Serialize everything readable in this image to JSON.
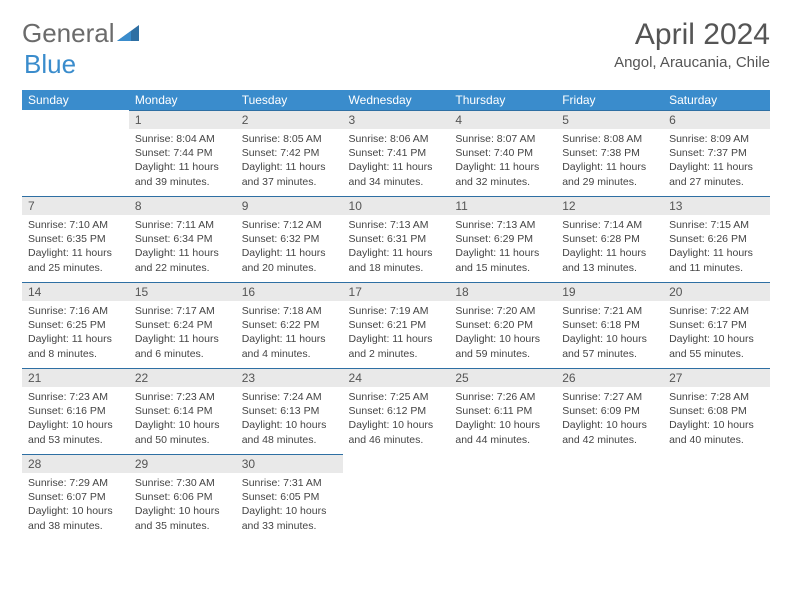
{
  "brand": {
    "part1": "General",
    "part2": "Blue"
  },
  "title": "April 2024",
  "location": "Angol, Araucania, Chile",
  "colors": {
    "header_bg": "#3a8ccc",
    "daynum_bg": "#e9e9e9",
    "border_top": "#2e6fa3",
    "text": "#444",
    "title": "#555"
  },
  "weekdays": [
    "Sunday",
    "Monday",
    "Tuesday",
    "Wednesday",
    "Thursday",
    "Friday",
    "Saturday"
  ],
  "weeks": [
    [
      null,
      {
        "n": "1",
        "sr": "8:04 AM",
        "ss": "7:44 PM",
        "dl": "11 hours and 39 minutes."
      },
      {
        "n": "2",
        "sr": "8:05 AM",
        "ss": "7:42 PM",
        "dl": "11 hours and 37 minutes."
      },
      {
        "n": "3",
        "sr": "8:06 AM",
        "ss": "7:41 PM",
        "dl": "11 hours and 34 minutes."
      },
      {
        "n": "4",
        "sr": "8:07 AM",
        "ss": "7:40 PM",
        "dl": "11 hours and 32 minutes."
      },
      {
        "n": "5",
        "sr": "8:08 AM",
        "ss": "7:38 PM",
        "dl": "11 hours and 29 minutes."
      },
      {
        "n": "6",
        "sr": "8:09 AM",
        "ss": "7:37 PM",
        "dl": "11 hours and 27 minutes."
      }
    ],
    [
      {
        "n": "7",
        "sr": "7:10 AM",
        "ss": "6:35 PM",
        "dl": "11 hours and 25 minutes."
      },
      {
        "n": "8",
        "sr": "7:11 AM",
        "ss": "6:34 PM",
        "dl": "11 hours and 22 minutes."
      },
      {
        "n": "9",
        "sr": "7:12 AM",
        "ss": "6:32 PM",
        "dl": "11 hours and 20 minutes."
      },
      {
        "n": "10",
        "sr": "7:13 AM",
        "ss": "6:31 PM",
        "dl": "11 hours and 18 minutes."
      },
      {
        "n": "11",
        "sr": "7:13 AM",
        "ss": "6:29 PM",
        "dl": "11 hours and 15 minutes."
      },
      {
        "n": "12",
        "sr": "7:14 AM",
        "ss": "6:28 PM",
        "dl": "11 hours and 13 minutes."
      },
      {
        "n": "13",
        "sr": "7:15 AM",
        "ss": "6:26 PM",
        "dl": "11 hours and 11 minutes."
      }
    ],
    [
      {
        "n": "14",
        "sr": "7:16 AM",
        "ss": "6:25 PM",
        "dl": "11 hours and 8 minutes."
      },
      {
        "n": "15",
        "sr": "7:17 AM",
        "ss": "6:24 PM",
        "dl": "11 hours and 6 minutes."
      },
      {
        "n": "16",
        "sr": "7:18 AM",
        "ss": "6:22 PM",
        "dl": "11 hours and 4 minutes."
      },
      {
        "n": "17",
        "sr": "7:19 AM",
        "ss": "6:21 PM",
        "dl": "11 hours and 2 minutes."
      },
      {
        "n": "18",
        "sr": "7:20 AM",
        "ss": "6:20 PM",
        "dl": "10 hours and 59 minutes."
      },
      {
        "n": "19",
        "sr": "7:21 AM",
        "ss": "6:18 PM",
        "dl": "10 hours and 57 minutes."
      },
      {
        "n": "20",
        "sr": "7:22 AM",
        "ss": "6:17 PM",
        "dl": "10 hours and 55 minutes."
      }
    ],
    [
      {
        "n": "21",
        "sr": "7:23 AM",
        "ss": "6:16 PM",
        "dl": "10 hours and 53 minutes."
      },
      {
        "n": "22",
        "sr": "7:23 AM",
        "ss": "6:14 PM",
        "dl": "10 hours and 50 minutes."
      },
      {
        "n": "23",
        "sr": "7:24 AM",
        "ss": "6:13 PM",
        "dl": "10 hours and 48 minutes."
      },
      {
        "n": "24",
        "sr": "7:25 AM",
        "ss": "6:12 PM",
        "dl": "10 hours and 46 minutes."
      },
      {
        "n": "25",
        "sr": "7:26 AM",
        "ss": "6:11 PM",
        "dl": "10 hours and 44 minutes."
      },
      {
        "n": "26",
        "sr": "7:27 AM",
        "ss": "6:09 PM",
        "dl": "10 hours and 42 minutes."
      },
      {
        "n": "27",
        "sr": "7:28 AM",
        "ss": "6:08 PM",
        "dl": "10 hours and 40 minutes."
      }
    ],
    [
      {
        "n": "28",
        "sr": "7:29 AM",
        "ss": "6:07 PM",
        "dl": "10 hours and 38 minutes."
      },
      {
        "n": "29",
        "sr": "7:30 AM",
        "ss": "6:06 PM",
        "dl": "10 hours and 35 minutes."
      },
      {
        "n": "30",
        "sr": "7:31 AM",
        "ss": "6:05 PM",
        "dl": "10 hours and 33 minutes."
      },
      null,
      null,
      null,
      null
    ]
  ],
  "labels": {
    "sunrise": "Sunrise:",
    "sunset": "Sunset:",
    "daylight": "Daylight:"
  }
}
